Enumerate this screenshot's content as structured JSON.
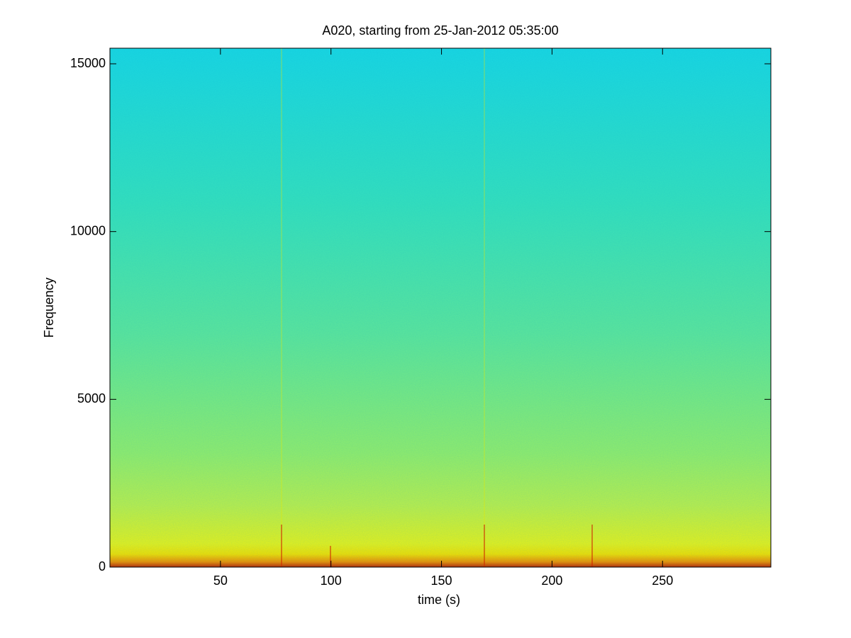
{
  "chart_data": {
    "type": "spectrogram",
    "title": "A020, starting from 25-Jan-2012 05:35:00",
    "x_label": "time (s)",
    "y_label": "Frequency",
    "xlim": [
      0,
      299
    ],
    "xticks": [
      50,
      100,
      150,
      200,
      250
    ],
    "ylim": [
      0,
      15465
    ],
    "yticks": [
      0,
      5000,
      10000,
      15000
    ]
  }
}
